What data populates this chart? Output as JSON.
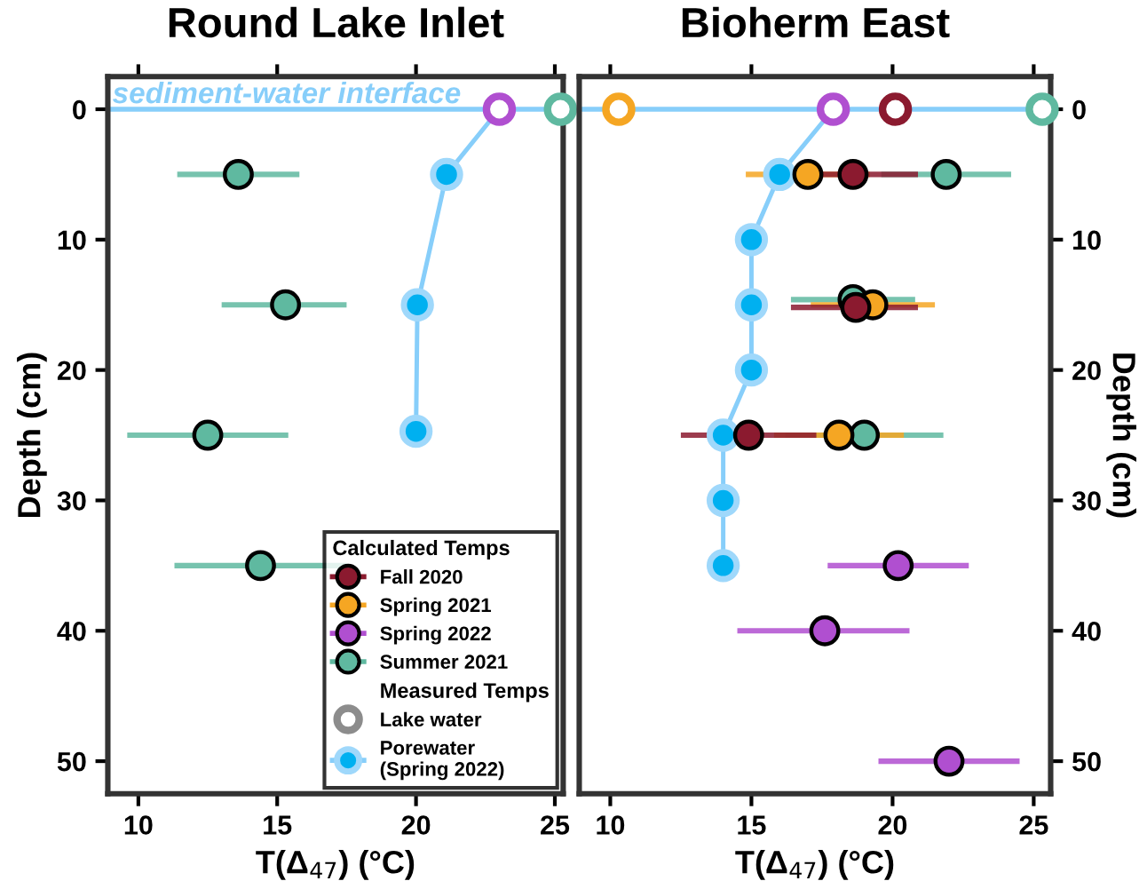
{
  "chart_data": [
    {
      "type": "scatter",
      "title": "Round Lake Inlet",
      "xlabel": "T(Δ$_{47}$) (°C)",
      "ylabel": "Depth (cm)",
      "xlim": [
        8.9,
        25.3
      ],
      "xticks": [
        10,
        15,
        20,
        25
      ],
      "ylim": [
        52.5,
        -2.5
      ],
      "yticks": [
        0,
        10,
        20,
        30,
        40,
        50
      ],
      "grid": false,
      "legend": "bottom right",
      "legend_title": "Calculated Temps",
      "annotations": [
        "Measured Temps"
      ],
      "marker": "circle",
      "ref_lines": [
        {
          "axis": "y",
          "value": 0,
          "label": "sediment-water interface",
          "color": "#87cefa"
        }
      ],
      "series": [
        {
          "name": "Fall 2020",
          "color": "#8b1a2f"
        },
        {
          "name": "Spring 2021",
          "color": "#f5a623"
        },
        {
          "name": "Spring 2022",
          "color": "#b04fd0"
        },
        {
          "name": "Summer 2021",
          "color": "#5fb9a0",
          "x": [
            13.6,
            15.3,
            12.5,
            14.4
          ],
          "values": [
            5,
            15,
            25,
            35
          ],
          "xerrors": [
            [
              11.4,
              15.8
            ],
            [
              13.0,
              17.5
            ],
            [
              9.6,
              15.4
            ],
            [
              11.3,
              17.5
            ]
          ]
        },
        {
          "name": "Lake water",
          "color": "#8c8c8c"
        },
        {
          "color": "#b04fd0",
          "colors": [
            "#b04fd0",
            "#5fb9a0"
          ],
          "x": [
            23.0,
            25.2
          ],
          "values": [
            0,
            0
          ]
        },
        {
          "name": "Porewater\n(Spring 2022)",
          "type": "line",
          "color": "#00b0f0",
          "x": [
            23.0,
            21.1,
            20.05,
            20.0
          ],
          "values": [
            0,
            5,
            15,
            24.7
          ]
        }
      ]
    },
    {
      "type": "scatter",
      "title": "Bioherm East",
      "xlabel": "T(Δ$_{47}$) (°C)",
      "ylabel": "Depth (cm)",
      "xlim": [
        8.9,
        25.6
      ],
      "xticks": [
        10,
        15,
        20,
        25
      ],
      "ylim": [
        52.5,
        -2.5
      ],
      "yticks": [
        0,
        10,
        20,
        30,
        40,
        50
      ],
      "grid": false,
      "legend": false,
      "marker": "circle",
      "ref_lines": [
        {
          "axis": "y",
          "value": 0,
          "label": null,
          "color": "#87cefa"
        }
      ],
      "series": [
        {
          "color": "#8b1a2f",
          "x": [
            18.6,
            18.7,
            14.9
          ],
          "values": [
            5,
            15.2,
            25
          ],
          "xerrors": [
            [
              16.3,
              20.9
            ],
            [
              16.4,
              20.9
            ],
            [
              12.5,
              17.3
            ]
          ]
        },
        {
          "color": "#f5a623",
          "x": [
            17.0,
            19.3,
            18.1
          ],
          "values": [
            5,
            15,
            25
          ],
          "xerrors": [
            [
              14.8,
              19.2
            ],
            [
              17.1,
              21.5
            ],
            [
              15.8,
              20.4
            ]
          ]
        },
        {
          "color": "#b04fd0",
          "x": [
            20.2,
            17.6,
            22.0
          ],
          "values": [
            35,
            40,
            50
          ],
          "xerrors": [
            [
              17.7,
              22.7
            ],
            [
              14.5,
              20.6
            ],
            [
              19.5,
              24.5
            ]
          ]
        },
        {
          "color": "#5fb9a0",
          "x": [
            21.9,
            18.6,
            19.0
          ],
          "values": [
            5,
            14.6,
            25
          ],
          "xerrors": [
            [
              19.6,
              24.2
            ],
            [
              16.4,
              20.8
            ],
            [
              16.2,
              21.8
            ]
          ]
        },
        {
          "color": "#8c8c8c",
          "colors": [
            "#f5a623",
            "#b04fd0",
            "#8b1a2f",
            "#5fb9a0"
          ],
          "x": [
            10.3,
            17.9,
            20.1,
            25.3
          ],
          "values": [
            0,
            0,
            0,
            0
          ]
        },
        {
          "type": "line",
          "color": "#00b0f0",
          "x": [
            17.9,
            16.0,
            15.0,
            15.0,
            15.0,
            14.0,
            14.0,
            14.0
          ],
          "values": [
            0,
            5,
            10,
            15,
            20,
            25,
            30,
            35
          ]
        }
      ]
    }
  ]
}
